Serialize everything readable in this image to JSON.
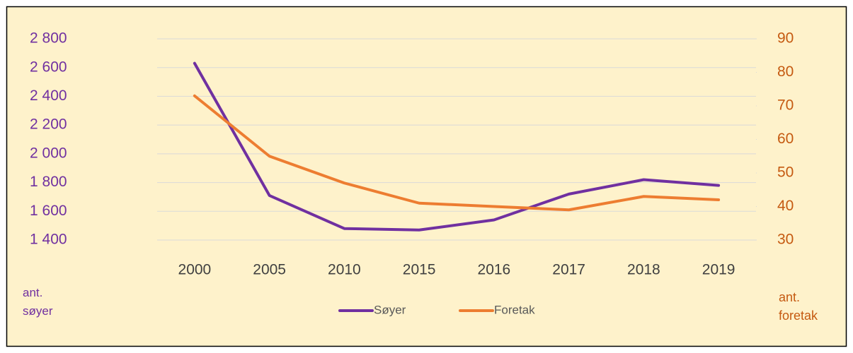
{
  "chart_data": {
    "type": "line",
    "categories": [
      "2000",
      "2005",
      "2010",
      "2015",
      "2016",
      "2017",
      "2018",
      "2019"
    ],
    "series": [
      {
        "name": "Søyer",
        "color": "#7030a0",
        "values": [
          2630,
          1710,
          1480,
          1470,
          1540,
          1720,
          1820,
          1780
        ]
      },
      {
        "name": "Foretak",
        "color": "#ed7d31",
        "axis": "y2",
        "values": [
          73,
          55,
          47,
          41,
          40,
          39,
          43,
          42
        ]
      }
    ],
    "ylim": [
      1400,
      2800
    ],
    "yticks": [
      {
        "value": 1400,
        "label": "1 400"
      },
      {
        "value": 1600,
        "label": "1 600"
      },
      {
        "value": 1800,
        "label": "1 800"
      },
      {
        "value": 2000,
        "label": "2 000"
      },
      {
        "value": 2200,
        "label": "2 200"
      },
      {
        "value": 2400,
        "label": "2 400"
      },
      {
        "value": 2600,
        "label": "2 600"
      },
      {
        "value": 2800,
        "label": "2 800"
      }
    ],
    "y2lim": [
      30,
      90
    ],
    "y2ticks": [
      30,
      40,
      50,
      60,
      70,
      80,
      90
    ],
    "y_label": "ant. søyer",
    "y2_label": "ant. foretak",
    "grid": true,
    "legend": "bottom"
  }
}
